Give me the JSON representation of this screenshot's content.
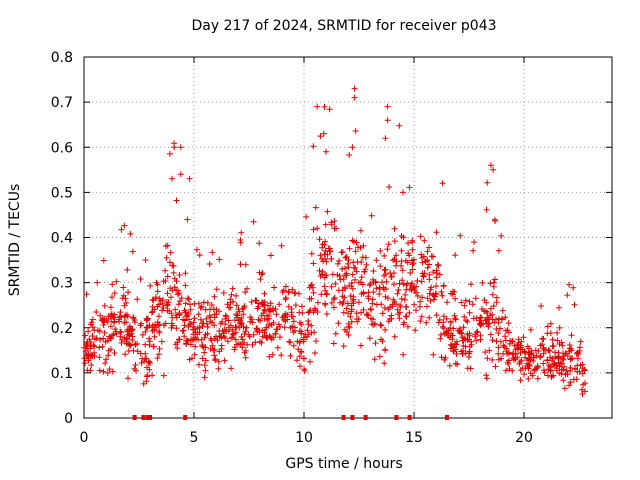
{
  "chart_data": {
    "type": "scatter",
    "title": "Day 217 of 2024, SRMTID for receiver p043",
    "xlabel": "GPS time / hours",
    "ylabel": "SRMTID / TECUs",
    "xlim": [
      0,
      24
    ],
    "ylim": [
      0,
      0.8
    ],
    "xticks": [
      0,
      5,
      10,
      15,
      20
    ],
    "yticks": [
      0,
      0.1,
      0.2,
      0.3,
      0.4,
      0.5,
      0.6,
      0.7,
      0.8
    ],
    "xtick_labels": [
      "0",
      "5",
      "10",
      "15",
      "20"
    ],
    "ytick_labels": [
      "0",
      "0.1",
      "0.2",
      "0.3",
      "0.4",
      "0.5",
      "0.6",
      "0.7",
      "0.8"
    ],
    "grid": true,
    "marker": "+",
    "color": "#e00000",
    "envelope": {
      "x": [
        0.0,
        0.5,
        1.0,
        1.5,
        2.0,
        2.5,
        3.0,
        3.5,
        4.0,
        4.5,
        5.0,
        5.5,
        6.0,
        6.5,
        7.0,
        7.5,
        8.0,
        8.5,
        9.0,
        9.5,
        10.0,
        10.5,
        11.0,
        11.5,
        12.0,
        12.5,
        13.0,
        13.5,
        14.0,
        14.5,
        15.0,
        15.5,
        16.0,
        16.5,
        17.0,
        17.5,
        18.0,
        18.5,
        19.0,
        19.5,
        20.0,
        20.5,
        21.0,
        21.5,
        22.0,
        22.5,
        22.8
      ],
      "center": [
        0.15,
        0.17,
        0.19,
        0.2,
        0.18,
        0.17,
        0.19,
        0.24,
        0.26,
        0.22,
        0.19,
        0.18,
        0.19,
        0.21,
        0.2,
        0.2,
        0.21,
        0.21,
        0.22,
        0.22,
        0.15,
        0.3,
        0.33,
        0.3,
        0.27,
        0.28,
        0.25,
        0.26,
        0.28,
        0.3,
        0.31,
        0.3,
        0.29,
        0.2,
        0.18,
        0.19,
        0.21,
        0.22,
        0.18,
        0.14,
        0.13,
        0.12,
        0.14,
        0.13,
        0.13,
        0.12,
        0.09
      ],
      "spread": [
        0.05,
        0.06,
        0.08,
        0.1,
        0.09,
        0.08,
        0.1,
        0.13,
        0.14,
        0.13,
        0.1,
        0.09,
        0.09,
        0.08,
        0.08,
        0.08,
        0.09,
        0.09,
        0.09,
        0.1,
        0.08,
        0.16,
        0.17,
        0.15,
        0.13,
        0.15,
        0.12,
        0.12,
        0.14,
        0.13,
        0.12,
        0.11,
        0.12,
        0.09,
        0.08,
        0.1,
        0.12,
        0.12,
        0.09,
        0.05,
        0.04,
        0.04,
        0.06,
        0.06,
        0.07,
        0.08,
        0.03
      ],
      "points_per_hour": 62
    },
    "outliers": [
      {
        "x": 4.0,
        "y": 0.53
      },
      {
        "x": 4.1,
        "y": 0.6
      },
      {
        "x": 4.4,
        "y": 0.6
      },
      {
        "x": 4.4,
        "y": 0.54
      },
      {
        "x": 4.8,
        "y": 0.53
      },
      {
        "x": 10.6,
        "y": 0.69
      },
      {
        "x": 10.9,
        "y": 0.63
      },
      {
        "x": 11.0,
        "y": 0.59
      },
      {
        "x": 12.3,
        "y": 0.73
      },
      {
        "x": 12.3,
        "y": 0.71
      },
      {
        "x": 12.2,
        "y": 0.6
      },
      {
        "x": 13.8,
        "y": 0.69
      },
      {
        "x": 13.8,
        "y": 0.66
      },
      {
        "x": 13.7,
        "y": 0.62
      },
      {
        "x": 14.5,
        "y": 0.5
      },
      {
        "x": 16.3,
        "y": 0.52
      },
      {
        "x": 18.5,
        "y": 0.56
      },
      {
        "x": 18.6,
        "y": 0.55
      },
      {
        "x": 0.6,
        "y": 0.3
      },
      {
        "x": 2.8,
        "y": 0.35
      }
    ],
    "zero_markers_x": [
      2.3,
      2.7,
      2.9,
      3.0,
      4.6,
      11.8,
      12.2,
      12.8,
      14.2,
      14.8,
      16.5
    ]
  }
}
